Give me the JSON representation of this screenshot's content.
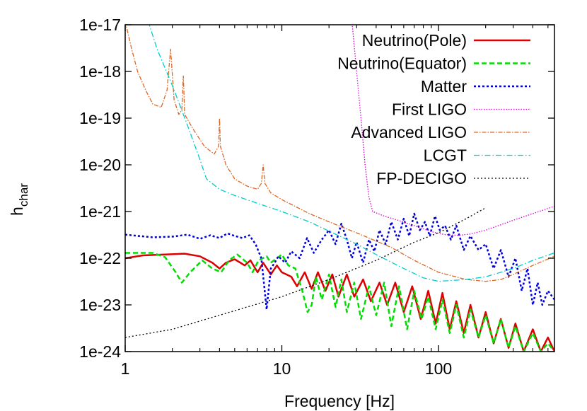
{
  "chart_data": {
    "type": "line",
    "xlabel": "Frequency [Hz]",
    "ylabel": "h",
    "ylabel_sub": "char",
    "x_scale": "log",
    "y_scale": "log",
    "xlim": [
      1,
      550
    ],
    "ylim": [
      1e-24,
      1e-17
    ],
    "x_ticks": [
      {
        "value": 1,
        "label": "1"
      },
      {
        "value": 10,
        "label": "10"
      },
      {
        "value": 100,
        "label": "100"
      }
    ],
    "y_ticks": [
      {
        "value": 1e-17,
        "label": "1e-17"
      },
      {
        "value": 1e-18,
        "label": "1e-18"
      },
      {
        "value": 1e-19,
        "label": "1e-19"
      },
      {
        "value": 1e-20,
        "label": "1e-20"
      },
      {
        "value": 1e-21,
        "label": "1e-21"
      },
      {
        "value": 1e-22,
        "label": "1e-22"
      },
      {
        "value": 1e-23,
        "label": "1e-23"
      },
      {
        "value": 1e-24,
        "label": "1e-24"
      }
    ],
    "legend_position": "top-right",
    "grid": false,
    "series": [
      {
        "name": "Neutrino(Pole)",
        "color": "#dd0000",
        "dash": "",
        "width": 2.5,
        "points": [
          [
            1,
            1e-22
          ],
          [
            1.3,
            1.15e-22
          ],
          [
            1.8,
            1.2e-22
          ],
          [
            2.4,
            1.25e-22
          ],
          [
            3,
            1.1e-22
          ],
          [
            3.6,
            8e-23
          ],
          [
            4,
            6e-23
          ],
          [
            4.4,
            8e-23
          ],
          [
            5,
            9.5e-23
          ],
          [
            5.8,
            7e-23
          ],
          [
            6.3,
            9e-23
          ],
          [
            7,
            5e-23
          ],
          [
            7.6,
            8e-23
          ],
          [
            8.5,
            4.5e-23
          ],
          [
            9.3,
            7e-23
          ],
          [
            10,
            5e-23
          ],
          [
            11.5,
            4e-23
          ],
          [
            12.5,
            2.5e-23
          ],
          [
            14,
            5e-23
          ],
          [
            15.5,
            2.2e-23
          ],
          [
            17,
            5e-23
          ],
          [
            19,
            2e-23
          ],
          [
            21,
            4.5e-23
          ],
          [
            23,
            1.5e-23
          ],
          [
            26,
            4.5e-23
          ],
          [
            29,
            1.5e-23
          ],
          [
            33,
            3.5e-23
          ],
          [
            37,
            1.2e-23
          ],
          [
            42,
            3e-23
          ],
          [
            47,
            1e-23
          ],
          [
            53,
            3e-23
          ],
          [
            60,
            7e-24
          ],
          [
            68,
            2.5e-23
          ],
          [
            77,
            5e-24
          ],
          [
            86,
            2e-23
          ],
          [
            96,
            4e-24
          ],
          [
            106,
            1.8e-23
          ],
          [
            118,
            3e-24
          ],
          [
            130,
            1.2e-23
          ],
          [
            145,
            2.5e-24
          ],
          [
            160,
            1e-23
          ],
          [
            180,
            2e-24
          ],
          [
            200,
            7e-24
          ],
          [
            225,
            1.5e-24
          ],
          [
            250,
            5e-24
          ],
          [
            280,
            1.2e-24
          ],
          [
            310,
            4e-24
          ],
          [
            350,
            1e-24
          ],
          [
            400,
            3e-24
          ],
          [
            450,
            1e-24
          ],
          [
            500,
            2e-24
          ],
          [
            550,
            1e-24
          ]
        ]
      },
      {
        "name": "Neutrino(Equator)",
        "color": "#00dd00",
        "dash": "7,4",
        "width": 2.5,
        "points": [
          [
            1,
            1.3e-22
          ],
          [
            1.5,
            1.3e-22
          ],
          [
            1.8,
            1.05e-22
          ],
          [
            2.1,
            5e-23
          ],
          [
            2.3,
            3e-23
          ],
          [
            2.6,
            5e-23
          ],
          [
            3.1,
            9e-23
          ],
          [
            3.6,
            6e-23
          ],
          [
            4.1,
            5e-23
          ],
          [
            4.6,
            9e-23
          ],
          [
            5.2,
            1.2e-22
          ],
          [
            6,
            8e-23
          ],
          [
            6.5,
            5e-23
          ],
          [
            7.1,
            9e-23
          ],
          [
            8,
            1.1e-22
          ],
          [
            8.5,
            8e-23
          ],
          [
            9.3,
            1e-22
          ],
          [
            10,
            1.2e-22
          ],
          [
            11,
            7e-23
          ],
          [
            12.2,
            6e-23
          ],
          [
            13.5,
            2e-23
          ],
          [
            14.6,
            7e-24
          ],
          [
            15.5,
            1e-23
          ],
          [
            16.5,
            4e-23
          ],
          [
            18,
            1.3e-23
          ],
          [
            20,
            4.5e-23
          ],
          [
            22,
            9e-24
          ],
          [
            24,
            3.5e-23
          ],
          [
            26,
            7e-24
          ],
          [
            29,
            3e-23
          ],
          [
            32,
            5e-24
          ],
          [
            36,
            2.5e-23
          ],
          [
            40,
            6e-24
          ],
          [
            45,
            3e-23
          ],
          [
            50,
            3.5e-24
          ],
          [
            56,
            2.5e-23
          ],
          [
            63,
            3e-24
          ],
          [
            70,
            2e-23
          ],
          [
            78,
            5e-24
          ],
          [
            86,
            1.5e-23
          ],
          [
            96,
            3e-24
          ],
          [
            106,
            1.3e-23
          ],
          [
            118,
            2.5e-24
          ],
          [
            130,
            1e-23
          ],
          [
            145,
            2e-24
          ],
          [
            160,
            8e-24
          ],
          [
            180,
            2e-24
          ],
          [
            200,
            6e-24
          ],
          [
            225,
            1.5e-24
          ],
          [
            250,
            5e-24
          ],
          [
            280,
            1.2e-24
          ],
          [
            310,
            3.5e-24
          ],
          [
            350,
            1e-24
          ],
          [
            400,
            2.5e-24
          ],
          [
            450,
            1e-24
          ],
          [
            500,
            1.5e-24
          ],
          [
            550,
            1e-24
          ]
        ]
      },
      {
        "name": "Matter",
        "color": "#0000dd",
        "dash": "3,3",
        "width": 2.5,
        "points": [
          [
            1,
            3.2e-22
          ],
          [
            1.5,
            2.8e-22
          ],
          [
            2,
            2.9e-22
          ],
          [
            2.5,
            3.2e-22
          ],
          [
            3,
            2.6e-22
          ],
          [
            3.5,
            3.1e-22
          ],
          [
            4,
            2.7e-22
          ],
          [
            4.5,
            3.4e-22
          ],
          [
            5,
            3e-22
          ],
          [
            5.6,
            2.7e-22
          ],
          [
            6.2,
            3.1e-22
          ],
          [
            6.8,
            2e-22
          ],
          [
            7.4,
            1e-22
          ],
          [
            8,
            8e-24
          ],
          [
            8.5,
            6e-23
          ],
          [
            9,
            8e-23
          ],
          [
            9.5,
            1.1e-22
          ],
          [
            10.5,
            8e-23
          ],
          [
            11.5,
            1.4e-22
          ],
          [
            13,
            1e-22
          ],
          [
            14.5,
            2.7e-22
          ],
          [
            16,
            1.3e-22
          ],
          [
            18,
            2.5e-22
          ],
          [
            20,
            4e-22
          ],
          [
            22,
            2e-22
          ],
          [
            24,
            5.5e-22
          ],
          [
            26,
            2.5e-22
          ],
          [
            28,
            1e-22
          ],
          [
            30,
            2.2e-22
          ],
          [
            33,
            8e-23
          ],
          [
            36,
            2.5e-22
          ],
          [
            39,
            1.4e-22
          ],
          [
            42,
            4e-22
          ],
          [
            46,
            2e-22
          ],
          [
            50,
            6e-22
          ],
          [
            55,
            2.5e-22
          ],
          [
            60,
            7e-22
          ],
          [
            65,
            3e-22
          ],
          [
            70,
            9e-22
          ],
          [
            76,
            4e-22
          ],
          [
            82,
            6e-22
          ],
          [
            88,
            3e-22
          ],
          [
            95,
            8e-22
          ],
          [
            102,
            4e-22
          ],
          [
            110,
            5e-22
          ],
          [
            120,
            2.5e-22
          ],
          [
            130,
            5e-22
          ],
          [
            145,
            1.5e-22
          ],
          [
            160,
            3e-22
          ],
          [
            180,
            1.5e-22
          ],
          [
            200,
            2e-22
          ],
          [
            225,
            6e-23
          ],
          [
            250,
            1.5e-22
          ],
          [
            280,
            4e-23
          ],
          [
            310,
            1e-22
          ],
          [
            340,
            2e-23
          ],
          [
            370,
            6e-23
          ],
          [
            400,
            1e-23
          ],
          [
            430,
            3e-23
          ],
          [
            460,
            1e-23
          ],
          [
            500,
            2e-23
          ],
          [
            550,
            1.3e-23
          ]
        ]
      },
      {
        "name": "First LIGO",
        "color": "#dd00dd",
        "dash": "1.5,2",
        "width": 1.3,
        "points": [
          [
            28,
            1.2e-17
          ],
          [
            30,
            1e-18
          ],
          [
            32,
            1e-19
          ],
          [
            34,
            1e-20
          ],
          [
            36,
            2e-21
          ],
          [
            38,
            1e-21
          ],
          [
            45,
            8e-22
          ],
          [
            55,
            6.5e-22
          ],
          [
            70,
            5e-22
          ],
          [
            90,
            3.7e-22
          ],
          [
            110,
            3.2e-22
          ],
          [
            135,
            3.1e-22
          ],
          [
            160,
            3.3e-22
          ],
          [
            200,
            4e-22
          ],
          [
            250,
            5.2e-22
          ],
          [
            300,
            6.5e-22
          ],
          [
            400,
            9e-22
          ],
          [
            550,
            1.3e-21
          ]
        ]
      },
      {
        "name": "Advanced LIGO",
        "color": "#dd6622",
        "dash": "6,2,1.5,2",
        "width": 1.3,
        "points": [
          [
            1,
            1.2e-17
          ],
          [
            1.1,
            3e-18
          ],
          [
            1.2,
            1e-18
          ],
          [
            1.35,
            4e-19
          ],
          [
            1.5,
            2e-19
          ],
          [
            1.7,
            1.7e-19
          ],
          [
            1.85,
            4e-19
          ],
          [
            1.95,
            3e-18
          ],
          [
            2.05,
            2.5e-19
          ],
          [
            2.2,
            1.2e-19
          ],
          [
            2.3,
            1.5e-19
          ],
          [
            2.35,
            8e-19
          ],
          [
            2.4,
            1.2e-19
          ],
          [
            2.7,
            6e-20
          ],
          [
            3.2,
            2.5e-20
          ],
          [
            3.7,
            1.7e-20
          ],
          [
            3.95,
            2.5e-20
          ],
          [
            4.0,
            1e-19
          ],
          [
            4.05,
            2.5e-20
          ],
          [
            4.4,
            1e-20
          ],
          [
            5,
            5e-21
          ],
          [
            6,
            3.5e-21
          ],
          [
            7,
            3e-21
          ],
          [
            7.4,
            4e-21
          ],
          [
            7.6,
            1e-20
          ],
          [
            7.8,
            4e-21
          ],
          [
            8.5,
            2.5e-21
          ],
          [
            10,
            1.8e-21
          ],
          [
            15,
            9e-22
          ],
          [
            20,
            6e-22
          ],
          [
            30,
            3.5e-22
          ],
          [
            50,
            1.7e-22
          ],
          [
            70,
            9e-23
          ],
          [
            100,
            5e-23
          ],
          [
            150,
            3.5e-23
          ],
          [
            200,
            3.2e-23
          ],
          [
            250,
            3.5e-23
          ],
          [
            300,
            4.5e-23
          ],
          [
            400,
            7e-23
          ],
          [
            550,
            1.1e-22
          ]
        ]
      },
      {
        "name": "LCGT",
        "color": "#00cccc",
        "dash": "8,3,1.5,3",
        "width": 1.3,
        "points": [
          [
            1.4,
            1.2e-17
          ],
          [
            1.6,
            3e-18
          ],
          [
            2,
            5e-19
          ],
          [
            2.5,
            7e-20
          ],
          [
            3,
            1.3e-20
          ],
          [
            3.3,
            5e-21
          ],
          [
            4,
            3e-21
          ],
          [
            5,
            2.2e-21
          ],
          [
            7,
            1.5e-21
          ],
          [
            10,
            1e-21
          ],
          [
            15,
            6e-22
          ],
          [
            20,
            3.8e-22
          ],
          [
            30,
            2e-22
          ],
          [
            40,
            1.2e-22
          ],
          [
            60,
            6e-23
          ],
          [
            80,
            3.8e-23
          ],
          [
            100,
            3.2e-23
          ],
          [
            150,
            3.5e-23
          ],
          [
            200,
            4e-23
          ],
          [
            300,
            6e-23
          ],
          [
            400,
            9e-23
          ],
          [
            550,
            1.3e-22
          ]
        ]
      },
      {
        "name": "FP-DECIGO",
        "color": "#000000",
        "dash": "2,3",
        "width": 1.3,
        "points": [
          [
            1,
            2e-24
          ],
          [
            2,
            3e-24
          ],
          [
            4,
            6e-24
          ],
          [
            10,
            1.5e-23
          ],
          [
            20,
            3.5e-23
          ],
          [
            40,
            9e-23
          ],
          [
            70,
            2.2e-22
          ],
          [
            100,
            3.5e-22
          ],
          [
            150,
            7e-22
          ],
          [
            200,
            1.2e-21
          ]
        ]
      }
    ]
  }
}
